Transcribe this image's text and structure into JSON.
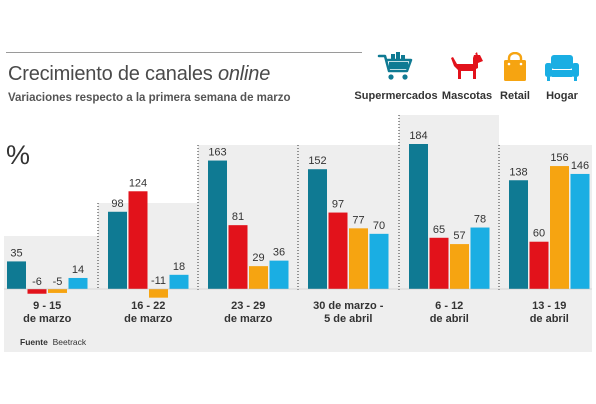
{
  "header": {
    "title_main": "Crecimiento de canales ",
    "title_emphasis": "online",
    "subtitle": "Variaciones respecto a la primera semana de marzo",
    "unit": "%"
  },
  "legend": [
    {
      "label": "Supermercados",
      "icon": "shopping-cart-icon",
      "color": "#0f7a93"
    },
    {
      "label": "Mascotas",
      "icon": "dog-icon",
      "color": "#e2121b"
    },
    {
      "label": "Retail",
      "icon": "shopping-bag-icon",
      "color": "#f6a411"
    },
    {
      "label": "Hogar",
      "icon": "armchair-icon",
      "color": "#1aaee3"
    }
  ],
  "source": {
    "prefix": "Fuente",
    "name": "Beetrack"
  },
  "colors": {
    "supermercados": "#0f7a93",
    "mascotas": "#e2121b",
    "retail": "#f6a411",
    "hogar": "#1aaee3",
    "panel_bg": "#eeeeee",
    "divider": "#333333"
  },
  "chart_data": {
    "type": "bar",
    "title": "Crecimiento de canales online",
    "subtitle": "Variaciones respecto a la primera semana de marzo",
    "ylabel": "%",
    "ylim": [
      -11,
      184
    ],
    "grid": false,
    "legend_position": "top-right",
    "categories": [
      [
        "9 - 15",
        "de marzo"
      ],
      [
        "16 - 22",
        "de marzo"
      ],
      [
        "23 - 29",
        "de marzo"
      ],
      [
        "30 de marzo -",
        "5 de abril"
      ],
      [
        "6 - 12",
        "de abril"
      ],
      [
        "13 - 19",
        "de abril"
      ]
    ],
    "series": [
      {
        "name": "Supermercados",
        "values": [
          35,
          98,
          163,
          152,
          184,
          138
        ]
      },
      {
        "name": "Mascotas",
        "values": [
          -6,
          124,
          81,
          97,
          65,
          60
        ]
      },
      {
        "name": "Retail",
        "values": [
          -5,
          -11,
          29,
          77,
          57,
          156
        ]
      },
      {
        "name": "Hogar",
        "values": [
          14,
          18,
          36,
          70,
          78,
          146
        ]
      }
    ]
  }
}
